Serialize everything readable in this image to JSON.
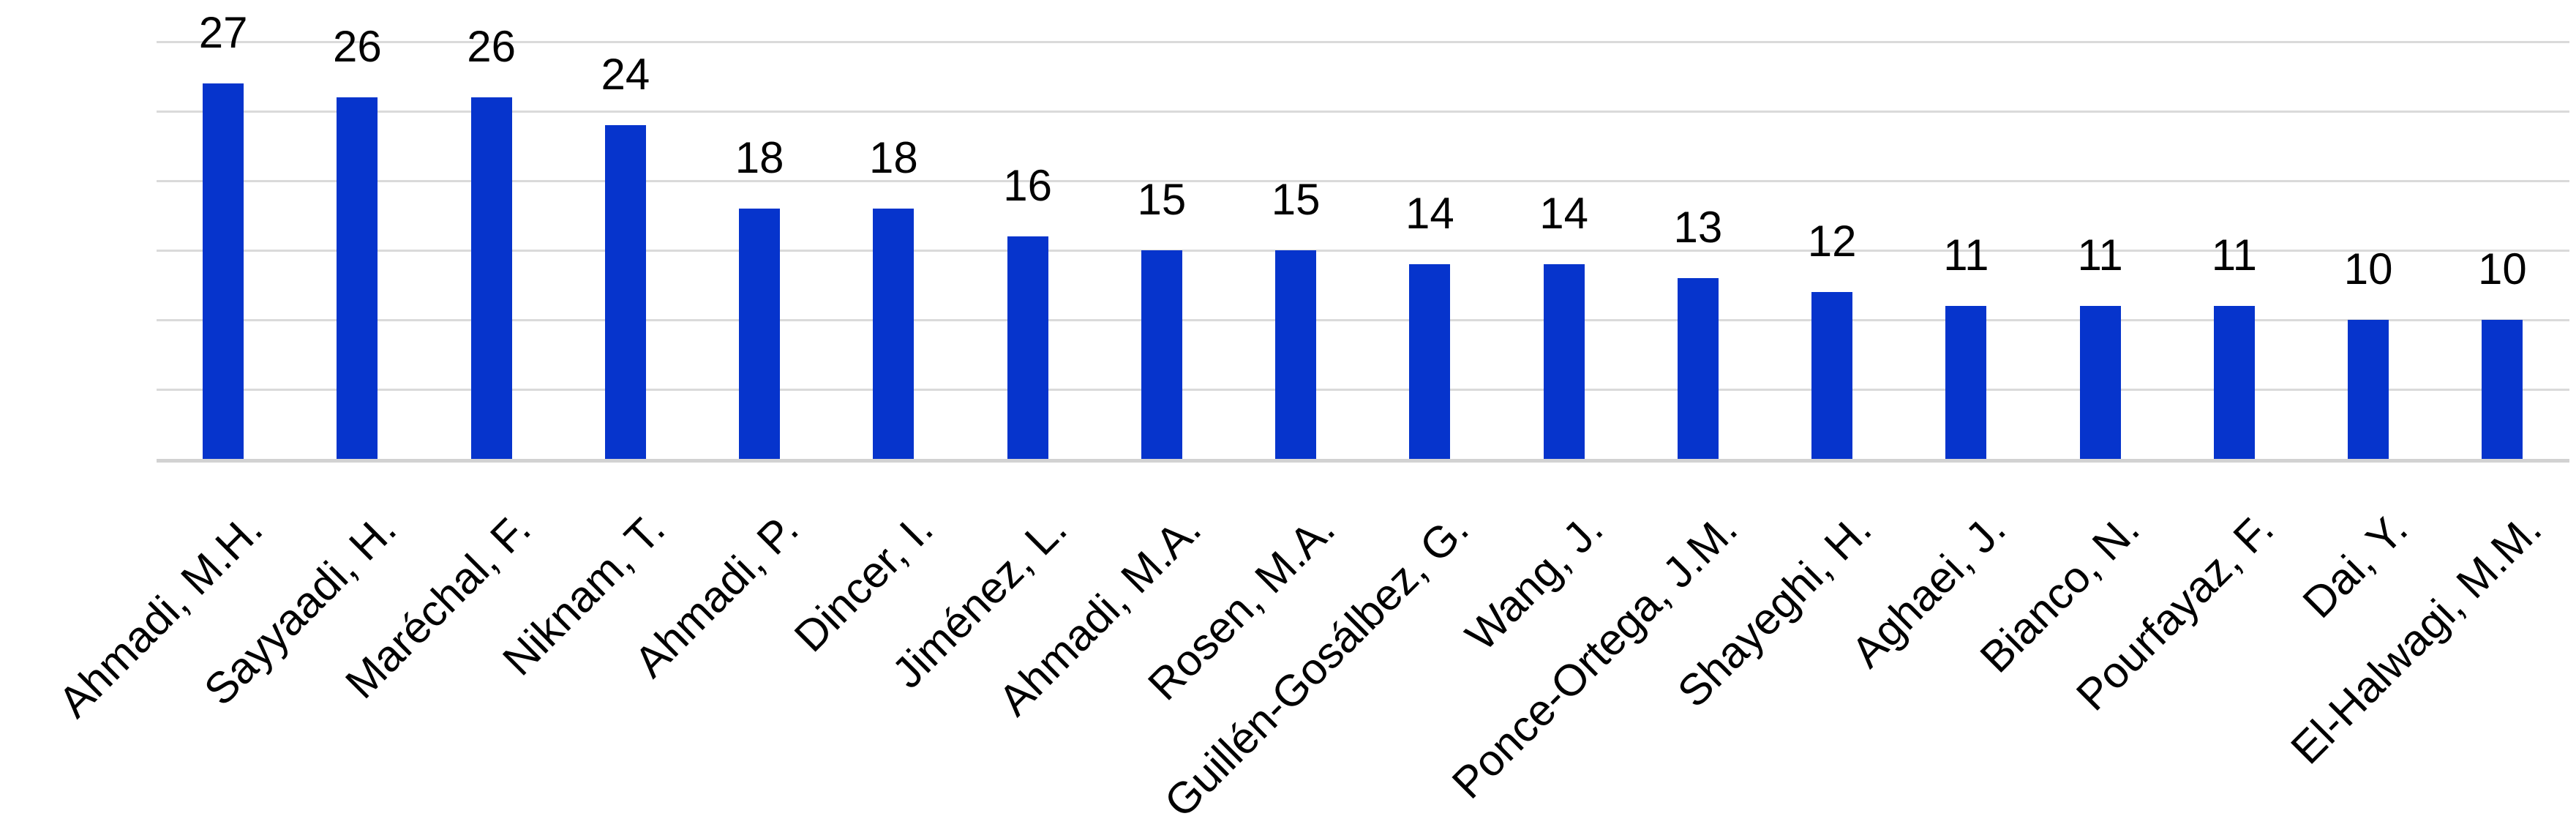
{
  "chart_data": {
    "type": "bar",
    "title": "",
    "xlabel": "",
    "ylabel": "",
    "categories": [
      "Ahmadi, M.H.",
      "Sayyaadi, H.",
      "Maréchal, F.",
      "Niknam, T.",
      "Ahmadi, P.",
      "Dincer, I.",
      "Jiménez, L.",
      "Ahmadi, M.A.",
      "Rosen, M.A.",
      "Guillén-Gosálbez, G.",
      "Wang, J.",
      "Ponce-Ortega, J.M.",
      "Shayeghi, H.",
      "Aghaei, J.",
      "Bianco, N.",
      "Pourfayaz, F.",
      "Dai, Y.",
      "El-Halwagi, M.M."
    ],
    "values": [
      27,
      26,
      26,
      24,
      18,
      18,
      16,
      15,
      15,
      14,
      14,
      13,
      12,
      11,
      11,
      11,
      10,
      10
    ],
    "value_labels_shown": true,
    "y_tick_labels_shown": false,
    "ylim": [
      0,
      30
    ],
    "gridline_step": 5,
    "grid": true,
    "legend": false,
    "x_tick_rotation_deg": 45,
    "bar_color": "#0634cc",
    "gridline_color": "#dadada",
    "axis_line_color": "#d2d2d2",
    "label_color": "#000000"
  }
}
